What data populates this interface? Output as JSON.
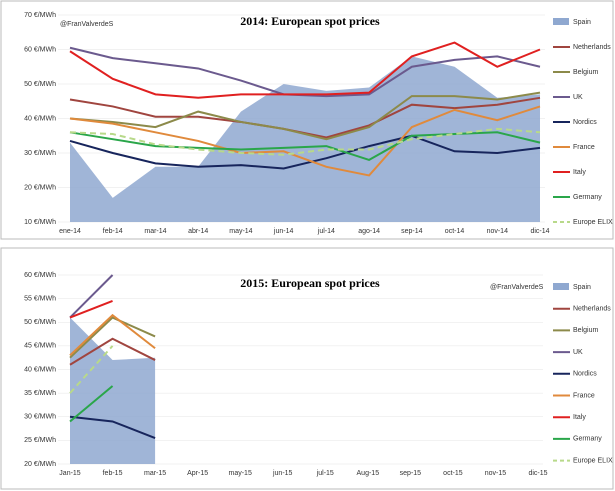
{
  "chart_data": [
    {
      "type": "line",
      "title": "2014: European spot prices",
      "annotation": "@FranValverdeS",
      "categories": [
        "ene-14",
        "feb-14",
        "mar-14",
        "abr-14",
        "may-14",
        "jun-14",
        "jul-14",
        "ago-14",
        "sep-14",
        "oct-14",
        "nov-14",
        "dic-14"
      ],
      "ylim": [
        10,
        70
      ],
      "yticks": [
        {
          "value": 10,
          "label": "10 €/MWh"
        },
        {
          "value": 20,
          "label": "20 €/MWh"
        },
        {
          "value": 30,
          "label": "30 €/MWh"
        },
        {
          "value": 40,
          "label": "40 €/MWh"
        },
        {
          "value": 50,
          "label": "50 €/MWh"
        },
        {
          "value": 60,
          "label": "60 €/MWh"
        },
        {
          "value": 70,
          "label": "70 €/MWh"
        }
      ],
      "grid": true,
      "series": [
        {
          "name": "Spain",
          "color": "#8fa8d0",
          "area": true,
          "values": [
            33,
            17,
            26,
            26,
            42,
            50,
            48,
            49,
            58,
            55,
            46,
            47
          ]
        },
        {
          "name": "Netherlands",
          "color": "#a0453f",
          "values": [
            45.5,
            43.5,
            40.5,
            40.5,
            39,
            37,
            34.5,
            38,
            44,
            43,
            44,
            46
          ]
        },
        {
          "name": "Belgium",
          "color": "#8c8a4a",
          "values": [
            40,
            39,
            37.5,
            42,
            39,
            37,
            34,
            37.5,
            46.5,
            46.5,
            45.5,
            47.5
          ]
        },
        {
          "name": "UK",
          "color": "#6b5a8e",
          "values": [
            60.5,
            57.5,
            56,
            54.5,
            51,
            47,
            46.5,
            47,
            55,
            57,
            58,
            55
          ]
        },
        {
          "name": "Nordics",
          "color": "#17255c",
          "values": [
            33.5,
            30,
            27,
            26,
            26.5,
            25.5,
            28.5,
            32,
            35,
            30.5,
            30,
            31.5
          ]
        },
        {
          "name": "France",
          "color": "#e08a3c",
          "values": [
            40,
            38.5,
            36,
            33.5,
            30,
            30.5,
            26,
            23.5,
            37.5,
            42.5,
            39.5,
            43.5
          ]
        },
        {
          "name": "Italy",
          "color": "#e02020",
          "values": [
            59.5,
            51.5,
            47,
            46,
            47,
            47,
            47,
            47.5,
            58,
            62,
            55,
            60
          ]
        },
        {
          "name": "Germany",
          "color": "#2aa64a",
          "values": [
            36,
            34,
            32,
            31.5,
            31,
            31.5,
            32,
            28,
            35,
            35.5,
            36,
            33
          ]
        },
        {
          "name": "Europe ELIX",
          "color": "#b8d98a",
          "dashed": true,
          "values": [
            36,
            35.5,
            32.5,
            31,
            30,
            29.5,
            31,
            31,
            34,
            35.5,
            37,
            36
          ]
        }
      ]
    },
    {
      "type": "line",
      "title": "2015: European spot prices",
      "annotation": "@FranValverdeS",
      "categories": [
        "Jan-15",
        "feb-15",
        "mar-15",
        "Apr-15",
        "may-15",
        "jun-15",
        "jul-15",
        "Aug-15",
        "sep-15",
        "oct-15",
        "nov-15",
        "dic-15"
      ],
      "ylim": [
        20,
        60
      ],
      "yticks": [
        {
          "value": 20,
          "label": "20 €/MWh"
        },
        {
          "value": 25,
          "label": "25 €/MWh"
        },
        {
          "value": 30,
          "label": "30 €/MWh"
        },
        {
          "value": 35,
          "label": "35 €/MWh"
        },
        {
          "value": 40,
          "label": "40 €/MWh"
        },
        {
          "value": 45,
          "label": "45 €/MWh"
        },
        {
          "value": 50,
          "label": "50 €/MWh"
        },
        {
          "value": 55,
          "label": "55 €/MWh"
        },
        {
          "value": 60,
          "label": "60 €/MWh"
        }
      ],
      "grid": true,
      "series": [
        {
          "name": "Spain",
          "color": "#8fa8d0",
          "area": true,
          "values": [
            51,
            42,
            42.5,
            null,
            null,
            null,
            null,
            null,
            null,
            null,
            null,
            null
          ]
        },
        {
          "name": "Netherlands",
          "color": "#a0453f",
          "values": [
            41,
            46.5,
            42,
            null,
            null,
            null,
            null,
            null,
            null,
            null,
            null,
            null
          ]
        },
        {
          "name": "Belgium",
          "color": "#8c8a4a",
          "values": [
            42.5,
            51,
            47,
            null,
            null,
            null,
            null,
            null,
            null,
            null,
            null,
            null
          ]
        },
        {
          "name": "UK",
          "color": "#6b5a8e",
          "values": [
            51,
            60,
            null,
            null,
            null,
            null,
            null,
            null,
            null,
            null,
            null,
            null
          ]
        },
        {
          "name": "Nordics",
          "color": "#17255c",
          "values": [
            30,
            29,
            25.5,
            null,
            null,
            null,
            null,
            null,
            null,
            null,
            null,
            null
          ]
        },
        {
          "name": "France",
          "color": "#e08a3c",
          "values": [
            43,
            51.5,
            44.5,
            null,
            null,
            null,
            null,
            null,
            null,
            null,
            null,
            null
          ]
        },
        {
          "name": "Italy",
          "color": "#e02020",
          "values": [
            51,
            54.5,
            null,
            null,
            null,
            null,
            null,
            null,
            null,
            null,
            null,
            null
          ]
        },
        {
          "name": "Germany",
          "color": "#2aa64a",
          "values": [
            29,
            36.5,
            null,
            null,
            null,
            null,
            null,
            null,
            null,
            null,
            null,
            null
          ]
        },
        {
          "name": "Europe ELIX",
          "color": "#b8d98a",
          "dashed": true,
          "values": [
            35,
            45,
            null,
            null,
            null,
            null,
            null,
            null,
            null,
            null,
            null,
            null
          ]
        }
      ]
    }
  ]
}
